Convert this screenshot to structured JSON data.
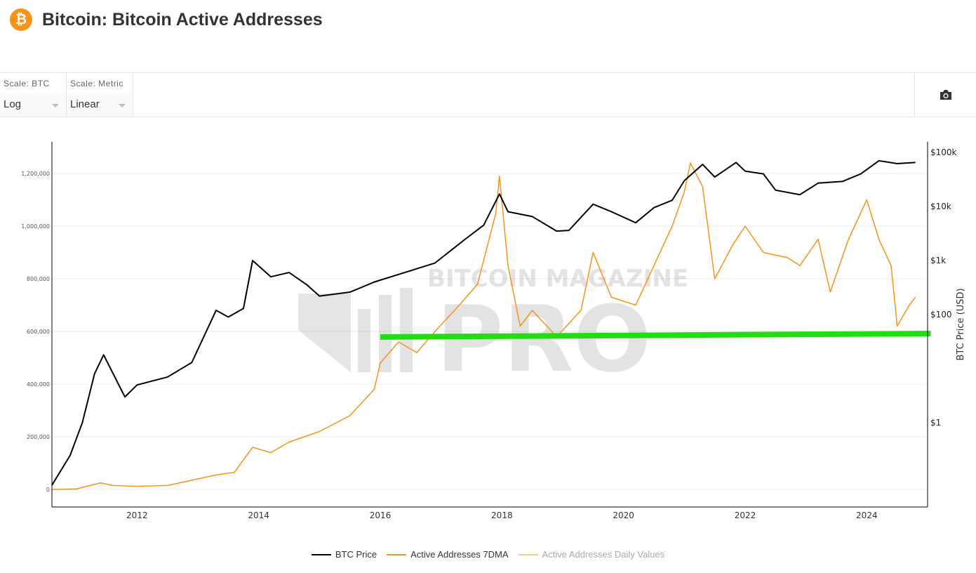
{
  "header": {
    "title": "Bitcoin: Bitcoin Active Addresses",
    "icon": "bitcoin-icon"
  },
  "controls": [
    {
      "label": "Scale: BTC",
      "value": "Log"
    },
    {
      "label": "Scale: Metric",
      "value": "Linear"
    }
  ],
  "toolbar": {
    "screenshot_icon": "camera-icon"
  },
  "watermark": {
    "line1": "BITCOIN MAGAZINE",
    "line2": "PRO"
  },
  "colors": {
    "btc": "#000000",
    "ma": "#f7931a",
    "daily": "#f3c98a",
    "annotation": "#22dd11"
  },
  "chart_data": {
    "type": "line",
    "x_ticks": [
      2012,
      2014,
      2016,
      2018,
      2020,
      2022,
      2024
    ],
    "xlim": [
      2010.6,
      2025.0
    ],
    "y_left": {
      "ylim": [
        -70000,
        1380000
      ],
      "ticks": [
        0,
        200000,
        400000,
        600000,
        800000,
        1000000,
        1200000
      ],
      "tick_labels": [
        "0",
        "200,000",
        "400,000",
        "600,000",
        "800,000",
        "1,000,000",
        "1,200,000"
      ],
      "scale": "linear"
    },
    "y_right": {
      "label": "BTC Price (USD)",
      "scale": "log",
      "ticks": [
        1,
        100,
        1000,
        10000,
        100000
      ],
      "tick_labels": [
        "$1",
        "$100",
        "$1k",
        "$10k",
        "$100k"
      ]
    },
    "series": [
      {
        "name": "BTC Price",
        "axis": "right",
        "color": "#000000",
        "points": [
          [
            2010.6,
            0.07
          ],
          [
            2010.9,
            0.25
          ],
          [
            2011.1,
            1
          ],
          [
            2011.3,
            8
          ],
          [
            2011.45,
            18
          ],
          [
            2011.8,
            3
          ],
          [
            2012.0,
            5
          ],
          [
            2012.5,
            7
          ],
          [
            2012.9,
            13
          ],
          [
            2013.3,
            120
          ],
          [
            2013.5,
            90
          ],
          [
            2013.75,
            130
          ],
          [
            2013.9,
            1000
          ],
          [
            2014.2,
            500
          ],
          [
            2014.5,
            600
          ],
          [
            2014.8,
            350
          ],
          [
            2015.0,
            220
          ],
          [
            2015.5,
            260
          ],
          [
            2015.9,
            400
          ],
          [
            2016.5,
            650
          ],
          [
            2016.9,
            900
          ],
          [
            2017.4,
            2500
          ],
          [
            2017.7,
            4500
          ],
          [
            2017.96,
            17000
          ],
          [
            2018.1,
            8000
          ],
          [
            2018.5,
            6500
          ],
          [
            2018.9,
            3500
          ],
          [
            2019.1,
            3600
          ],
          [
            2019.5,
            11000
          ],
          [
            2019.8,
            8000
          ],
          [
            2020.2,
            5000
          ],
          [
            2020.5,
            9500
          ],
          [
            2020.8,
            13000
          ],
          [
            2021.0,
            30000
          ],
          [
            2021.3,
            60000
          ],
          [
            2021.5,
            35000
          ],
          [
            2021.85,
            65000
          ],
          [
            2022.0,
            45000
          ],
          [
            2022.3,
            40000
          ],
          [
            2022.5,
            20000
          ],
          [
            2022.9,
            16500
          ],
          [
            2023.2,
            27000
          ],
          [
            2023.6,
            29000
          ],
          [
            2023.9,
            40000
          ],
          [
            2024.2,
            70000
          ],
          [
            2024.5,
            62000
          ],
          [
            2024.8,
            65000
          ]
        ]
      },
      {
        "name": "Active Addresses 7DMA",
        "axis": "left",
        "color": "#f7931a",
        "points": [
          [
            2010.6,
            0
          ],
          [
            2011.0,
            2000
          ],
          [
            2011.4,
            25000
          ],
          [
            2011.6,
            15000
          ],
          [
            2012.0,
            12000
          ],
          [
            2012.5,
            15000
          ],
          [
            2012.9,
            35000
          ],
          [
            2013.3,
            55000
          ],
          [
            2013.6,
            65000
          ],
          [
            2013.9,
            160000
          ],
          [
            2014.2,
            140000
          ],
          [
            2014.5,
            180000
          ],
          [
            2015.0,
            220000
          ],
          [
            2015.5,
            280000
          ],
          [
            2015.9,
            380000
          ],
          [
            2016.0,
            480000
          ],
          [
            2016.3,
            560000
          ],
          [
            2016.6,
            520000
          ],
          [
            2016.9,
            600000
          ],
          [
            2017.3,
            700000
          ],
          [
            2017.6,
            780000
          ],
          [
            2017.9,
            1050000
          ],
          [
            2017.96,
            1190000
          ],
          [
            2018.1,
            850000
          ],
          [
            2018.3,
            620000
          ],
          [
            2018.5,
            680000
          ],
          [
            2018.9,
            580000
          ],
          [
            2019.3,
            680000
          ],
          [
            2019.5,
            900000
          ],
          [
            2019.8,
            730000
          ],
          [
            2020.2,
            700000
          ],
          [
            2020.6,
            900000
          ],
          [
            2020.8,
            1000000
          ],
          [
            2021.0,
            1130000
          ],
          [
            2021.1,
            1240000
          ],
          [
            2021.3,
            1150000
          ],
          [
            2021.5,
            800000
          ],
          [
            2021.8,
            930000
          ],
          [
            2022.0,
            1000000
          ],
          [
            2022.3,
            900000
          ],
          [
            2022.7,
            880000
          ],
          [
            2022.9,
            850000
          ],
          [
            2023.2,
            950000
          ],
          [
            2023.4,
            750000
          ],
          [
            2023.7,
            950000
          ],
          [
            2024.0,
            1100000
          ],
          [
            2024.2,
            950000
          ],
          [
            2024.4,
            850000
          ],
          [
            2024.5,
            620000
          ],
          [
            2024.7,
            700000
          ],
          [
            2024.8,
            730000
          ]
        ]
      },
      {
        "name": "Active Addresses Daily Values",
        "axis": "left",
        "color": "#f3c98a",
        "points": []
      }
    ],
    "annotations": [
      {
        "type": "line",
        "color": "#22dd11",
        "from": [
          2016.0,
          579000
        ],
        "to": [
          2025.05,
          592000
        ]
      }
    ],
    "grid": true,
    "legend": "bottom"
  }
}
